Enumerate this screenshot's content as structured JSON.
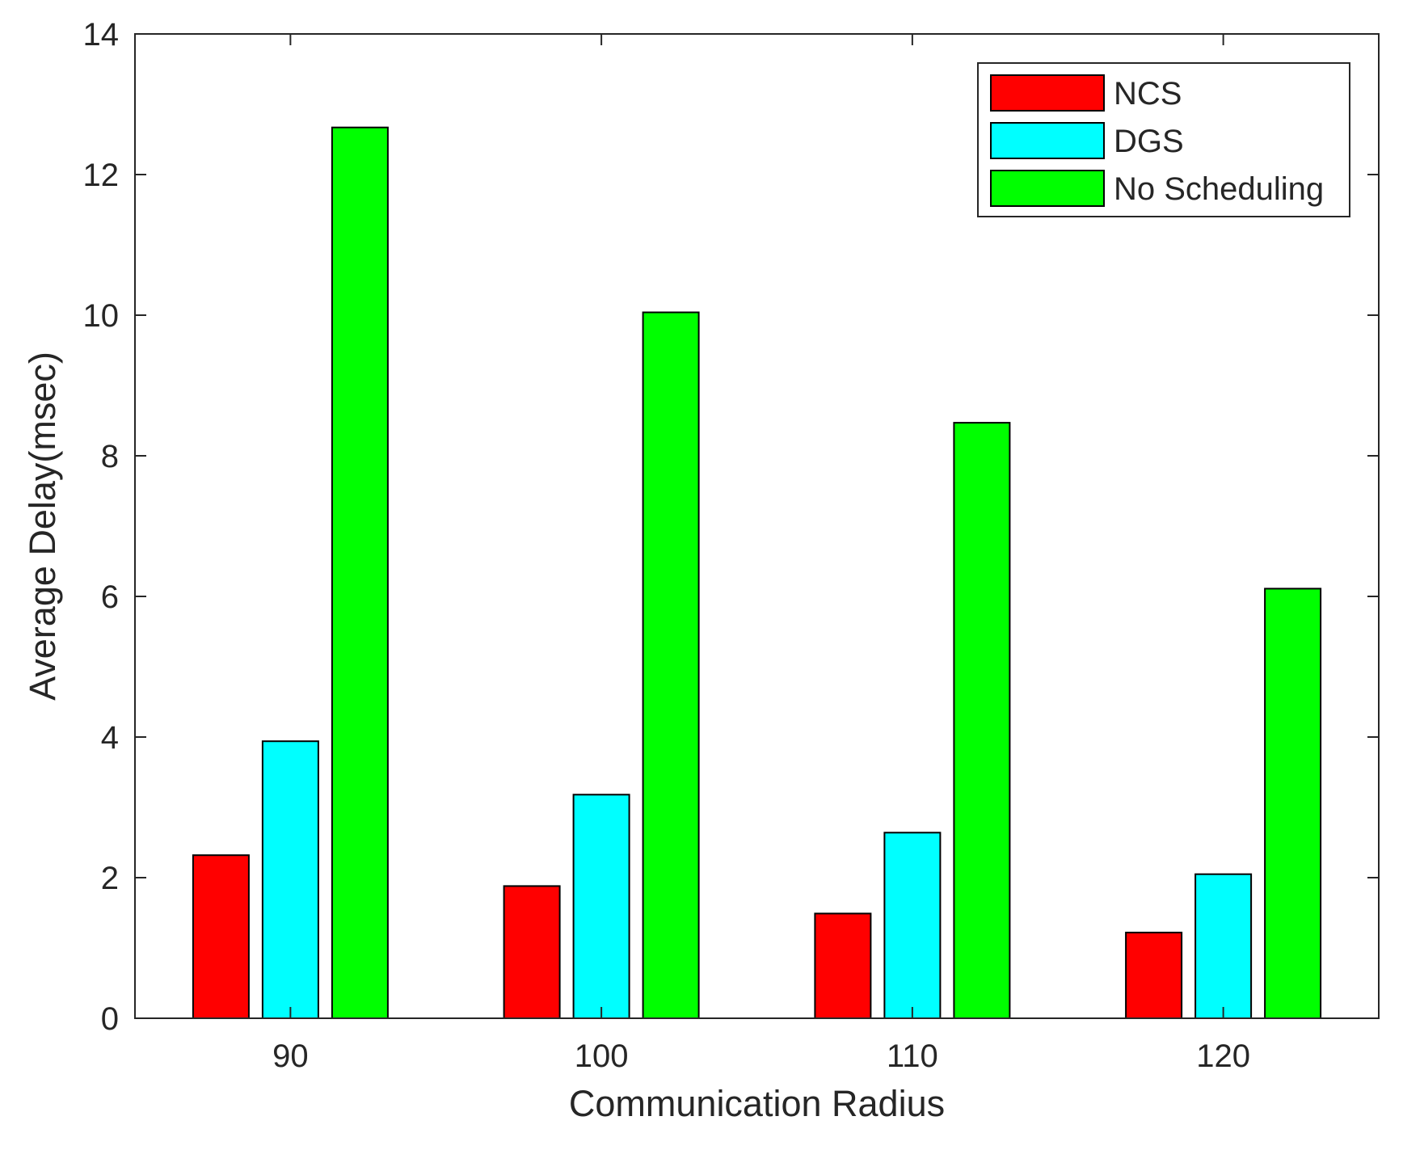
{
  "chart_data": {
    "type": "bar",
    "categories": [
      "90",
      "100",
      "110",
      "120"
    ],
    "series": [
      {
        "name": "NCS",
        "color": "#ff0000",
        "values": [
          2.32,
          1.88,
          1.49,
          1.22
        ]
      },
      {
        "name": "DGS",
        "color": "#00ffff",
        "values": [
          3.94,
          3.18,
          2.64,
          2.05
        ]
      },
      {
        "name": "No Scheduling",
        "color": "#00ff00",
        "values": [
          12.67,
          10.04,
          8.47,
          6.11
        ]
      }
    ],
    "title": "",
    "xlabel": "Communication Radius",
    "ylabel": "Average Delay(msec)",
    "ylim": [
      0,
      14
    ],
    "yticks": [
      0,
      2,
      4,
      6,
      8,
      10,
      12,
      14
    ],
    "grid": false,
    "legend_position": "top-right"
  }
}
